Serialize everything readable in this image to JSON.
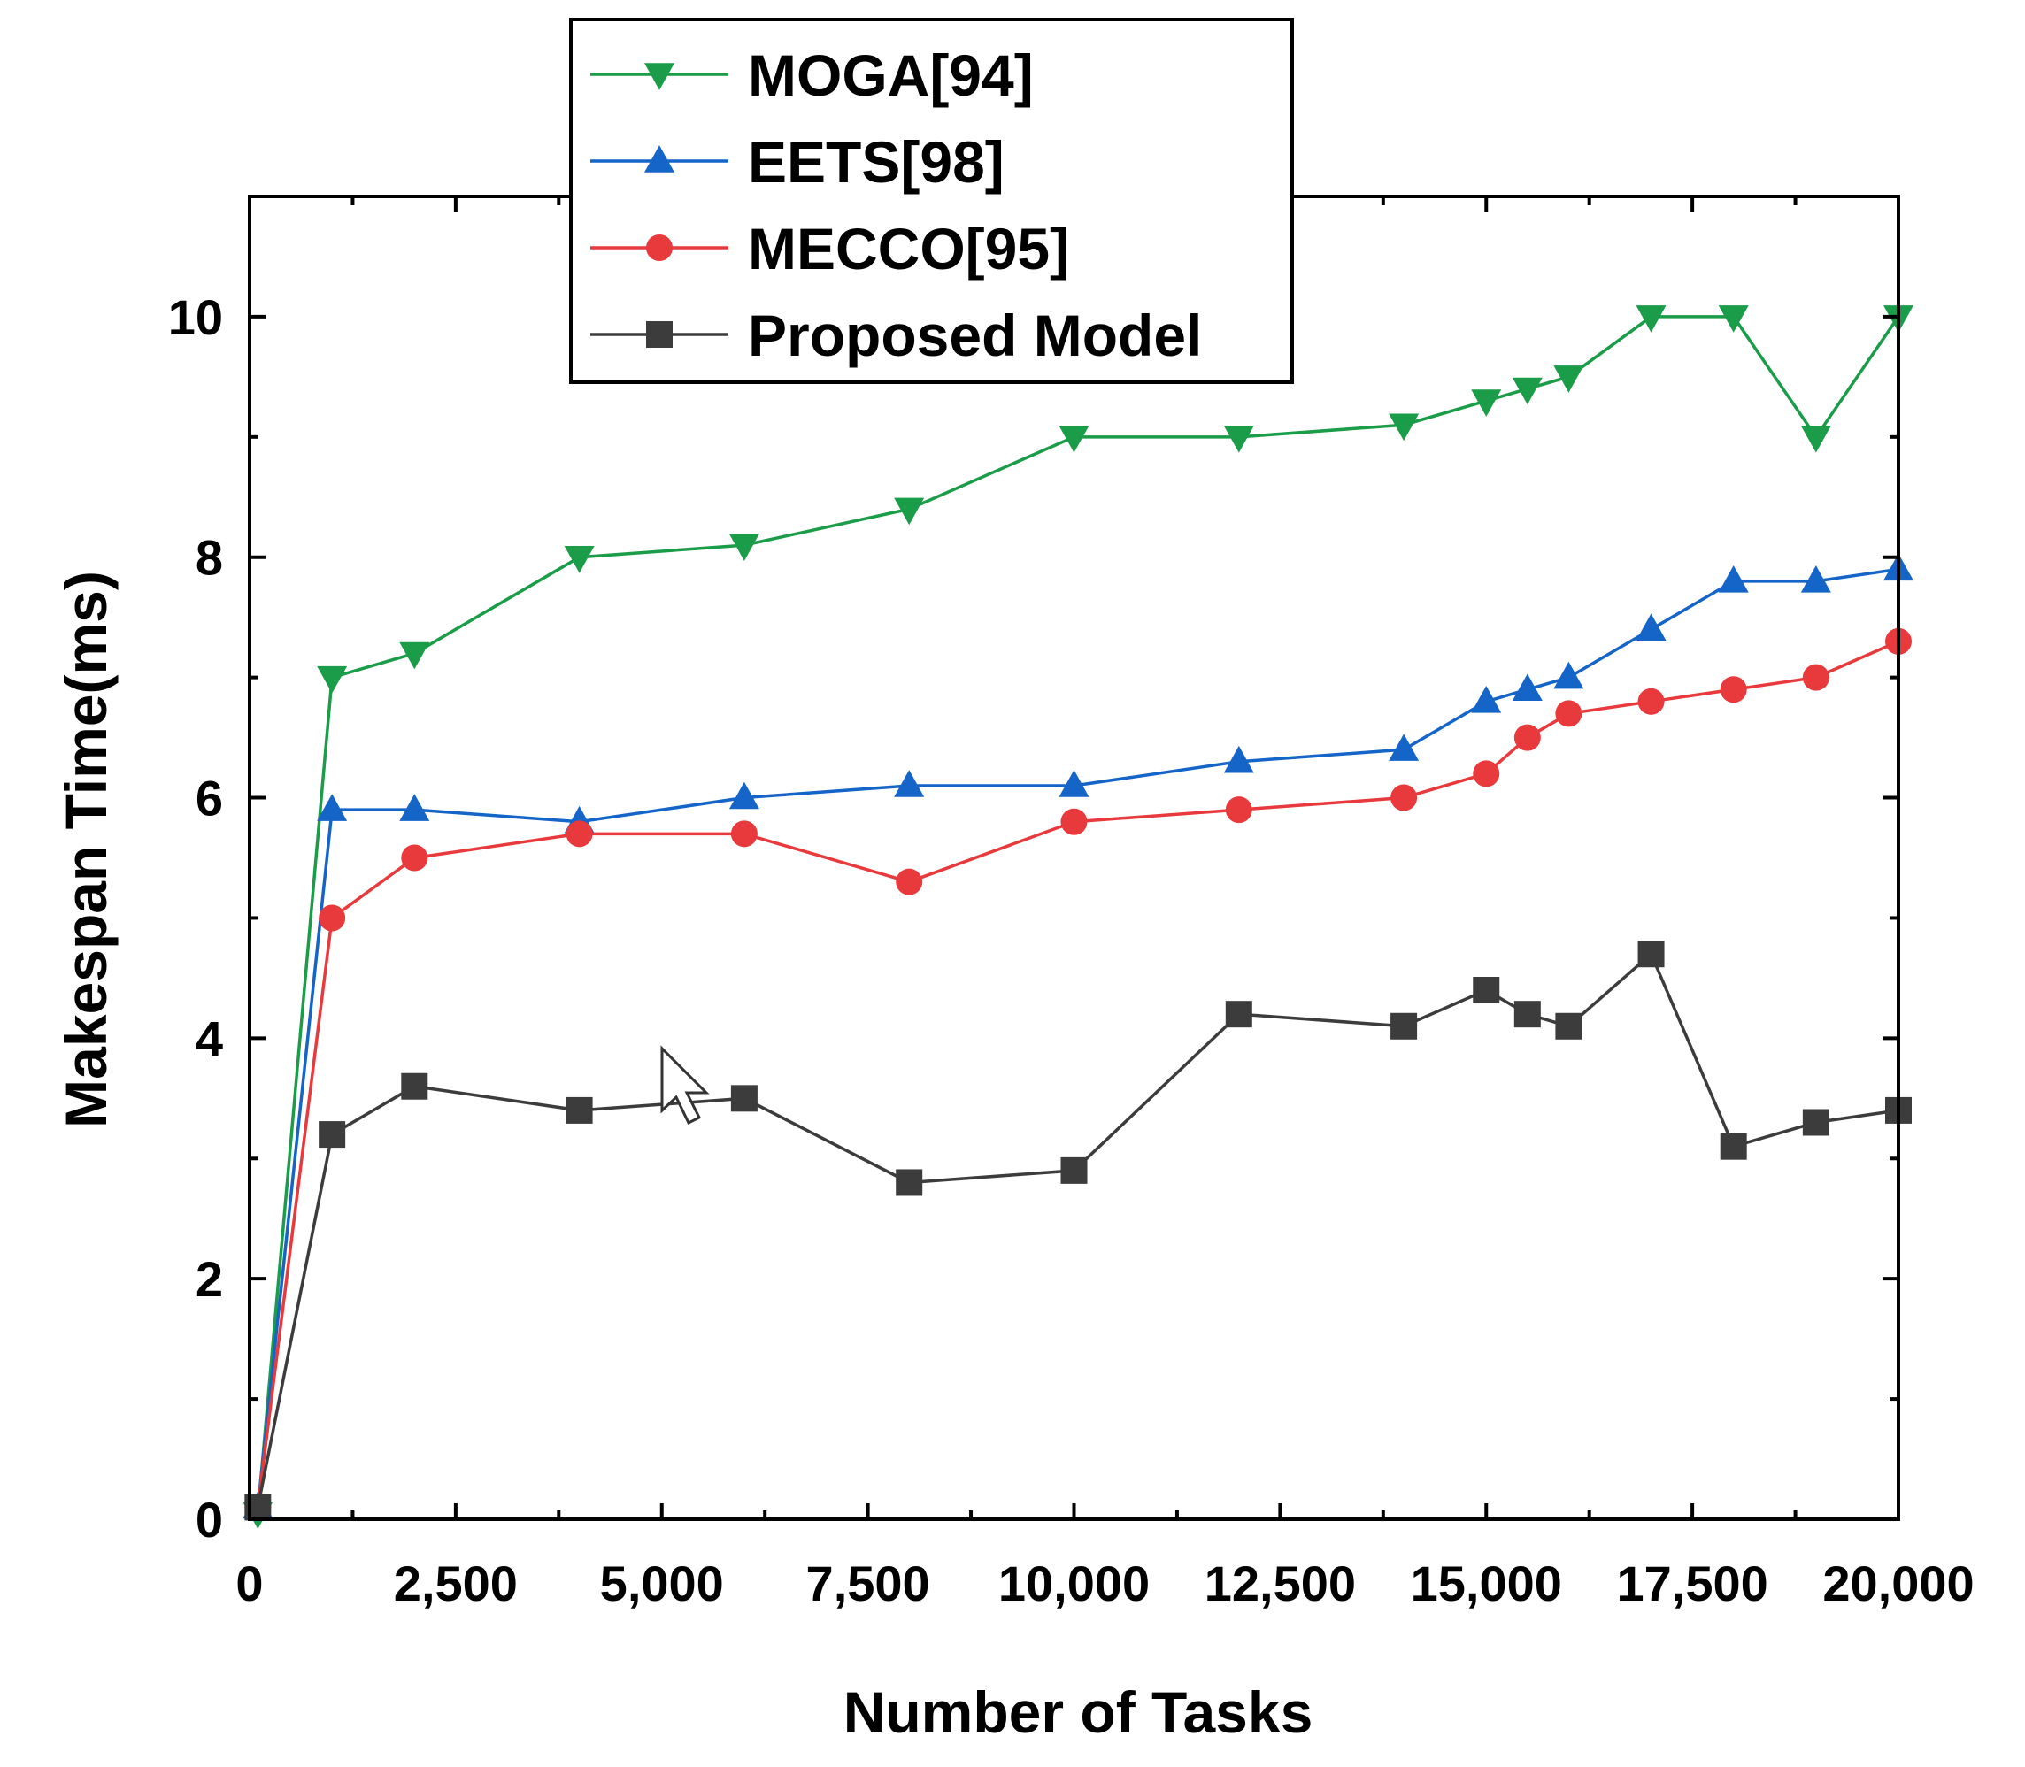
{
  "chart_data": {
    "type": "line",
    "title": "",
    "xlabel": "Number of Tasks",
    "ylabel": "Makespan Time(ms)",
    "xlim": [
      0,
      20000
    ],
    "ylim": [
      0,
      11
    ],
    "x_ticks": [
      0,
      2500,
      5000,
      7500,
      10000,
      12500,
      15000,
      17500,
      20000
    ],
    "x_tick_labels": [
      "0",
      "2,500",
      "5,000",
      "7,500",
      "10,000",
      "12,500",
      "15,000",
      "17,500",
      "20,000"
    ],
    "y_ticks": [
      0,
      2,
      4,
      6,
      8,
      10
    ],
    "y_tick_labels": [
      "0",
      "2",
      "4",
      "6",
      "8",
      "10"
    ],
    "grid": false,
    "legend_position": "top-center",
    "series": [
      {
        "name": "MOGA[94]",
        "color": "#1a9c48",
        "marker": "triangle-down",
        "x": [
          100,
          1000,
          2000,
          4000,
          6000,
          8000,
          10000,
          12000,
          14000,
          15000,
          15500,
          16000,
          17000,
          18000,
          19000,
          20000
        ],
        "y": [
          0.05,
          7.0,
          7.2,
          8.0,
          8.1,
          8.4,
          9.0,
          9.0,
          9.1,
          9.3,
          9.4,
          9.5,
          10.0,
          10.0,
          9.0,
          10.0
        ]
      },
      {
        "name": "EETS[98]",
        "color": "#1565c8",
        "marker": "triangle-up",
        "x": [
          100,
          1000,
          2000,
          4000,
          6000,
          8000,
          10000,
          12000,
          14000,
          15000,
          15500,
          16000,
          17000,
          18000,
          19000,
          20000
        ],
        "y": [
          0.1,
          5.9,
          5.9,
          5.8,
          6.0,
          6.1,
          6.1,
          6.3,
          6.4,
          6.8,
          6.9,
          7.0,
          7.4,
          7.8,
          7.8,
          7.9
        ]
      },
      {
        "name": "MECCO[95]",
        "color": "#e8393c",
        "marker": "circle",
        "x": [
          100,
          1000,
          2000,
          4000,
          6000,
          8000,
          10000,
          12000,
          14000,
          15000,
          15500,
          16000,
          17000,
          18000,
          19000,
          20000
        ],
        "y": [
          0.1,
          5.0,
          5.5,
          5.7,
          5.7,
          5.3,
          5.8,
          5.9,
          6.0,
          6.2,
          6.5,
          6.7,
          6.8,
          6.9,
          7.0,
          7.3
        ]
      },
      {
        "name": "Proposed Model",
        "color": "#3c3c3c",
        "marker": "square",
        "x": [
          100,
          1000,
          2000,
          4000,
          6000,
          8000,
          10000,
          12000,
          14000,
          15000,
          15500,
          16000,
          17000,
          18000,
          19000,
          20000
        ],
        "y": [
          0.1,
          3.2,
          3.6,
          3.4,
          3.5,
          2.8,
          2.9,
          4.2,
          4.1,
          4.4,
          4.2,
          4.1,
          4.7,
          3.1,
          3.3,
          3.4
        ]
      }
    ]
  }
}
